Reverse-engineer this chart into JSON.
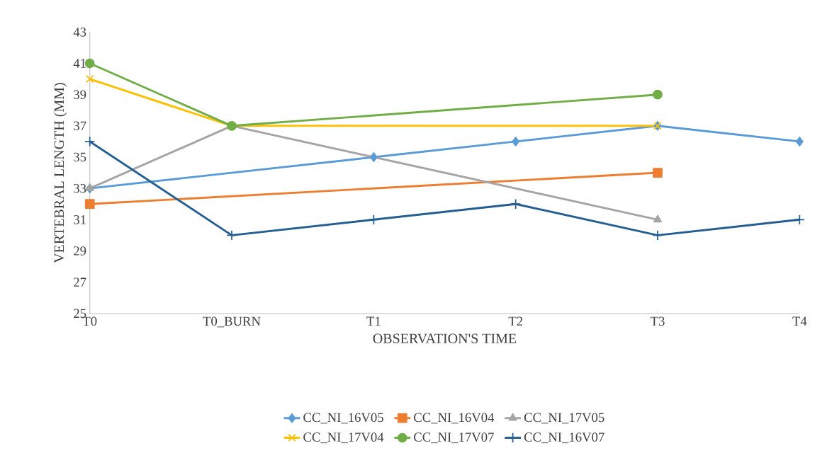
{
  "chart_data": {
    "type": "line",
    "xlabel": "OBSERVATION'S TIME",
    "ylabel": "VERTEBRAL LENGTH (MM)",
    "categories": [
      "T0",
      "T0_BURN",
      "T1",
      "T2",
      "T3",
      "T4"
    ],
    "ylim": [
      25,
      43
    ],
    "yticks": [
      25,
      27,
      29,
      31,
      33,
      35,
      37,
      39,
      41,
      43
    ],
    "grid": false,
    "legend": "bottom",
    "line_style": "solid",
    "series": [
      {
        "name": "CC_NI_16V05",
        "color": "#5b9bd5",
        "marker": "diamond",
        "values": [
          33,
          null,
          35,
          36,
          37,
          36
        ]
      },
      {
        "name": "CC_NI_16V04",
        "color": "#ed7d31",
        "marker": "square",
        "values": [
          32,
          null,
          null,
          null,
          34,
          null
        ]
      },
      {
        "name": "CC_NI_17V05",
        "color": "#a5a5a5",
        "marker": "triangle",
        "values": [
          33,
          37,
          null,
          null,
          31,
          null
        ]
      },
      {
        "name": "CC_NI_17V04",
        "color": "#ffc000",
        "marker": "cross",
        "values": [
          40,
          37,
          null,
          null,
          37,
          null
        ]
      },
      {
        "name": "CC_NI_17V07",
        "color": "#70ad47",
        "marker": "circle",
        "values": [
          41,
          37,
          null,
          null,
          39,
          null
        ]
      },
      {
        "name": "CC_NI_16V07",
        "color": "#255e91",
        "marker": "plus",
        "values": [
          36,
          30,
          31,
          32,
          30,
          31
        ]
      }
    ]
  }
}
